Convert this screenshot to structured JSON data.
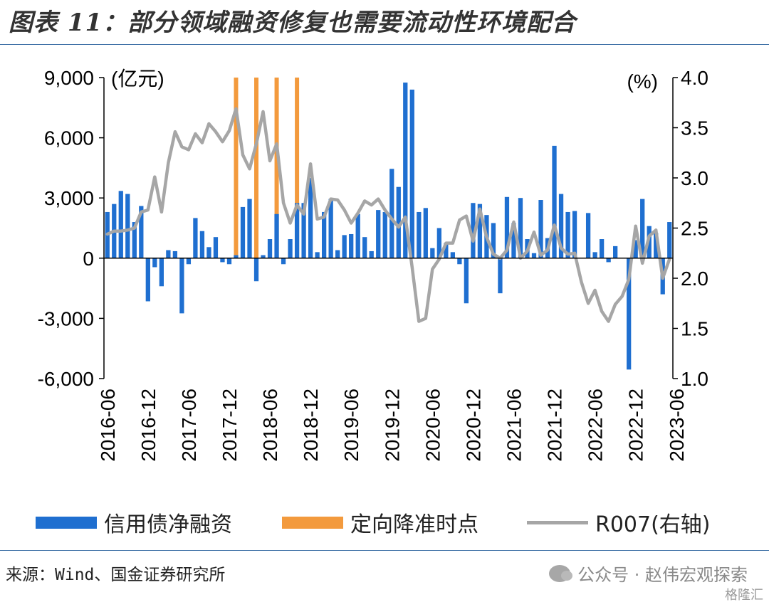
{
  "title": "图表 11：部分领域融资修复也需要流动性环境配合",
  "chart_data": {
    "type": "bar+line",
    "left_axis": {
      "unit_label": "(亿元)",
      "ticks": [
        9000,
        6000,
        3000,
        0,
        -3000,
        -6000
      ],
      "tick_labels": [
        "9,000",
        "6,000",
        "3,000",
        "0",
        "-3,000",
        "-6,000"
      ],
      "ylim": [
        -6000,
        9000
      ]
    },
    "right_axis": {
      "unit_label": "(%)",
      "ticks": [
        4.0,
        3.5,
        3.0,
        2.5,
        2.0,
        1.5,
        1.0
      ],
      "tick_labels": [
        "4.0",
        "3.5",
        "3.0",
        "2.5",
        "2.0",
        "1.5",
        "1.0"
      ],
      "ylim": [
        1.0,
        4.0
      ]
    },
    "x_tick_labels": [
      "2016-06",
      "2016-12",
      "2017-06",
      "2017-12",
      "2018-06",
      "2018-12",
      "2019-06",
      "2019-12",
      "2020-06",
      "2020-12",
      "2021-06",
      "2021-12",
      "2022-06",
      "2022-12",
      "2023-06"
    ],
    "x_start": "2016-06",
    "series": [
      {
        "name": "信用债净融资",
        "type": "bar",
        "axis": "left",
        "color": "#1f6fd0",
        "values": [
          2300,
          2700,
          3350,
          3200,
          1800,
          2600,
          -2150,
          -450,
          -1400,
          400,
          350,
          -2750,
          -300,
          2000,
          1350,
          550,
          1050,
          -200,
          -300,
          150,
          2550,
          2950,
          -1150,
          150,
          950,
          2200,
          -300,
          950,
          2750,
          2750,
          4000,
          300,
          2300,
          2950,
          400,
          1150,
          1200,
          2200,
          1050,
          350,
          2400,
          2300,
          4450,
          3550,
          8750,
          8400,
          2300,
          2500,
          500,
          1500,
          750,
          300,
          -300,
          -2250,
          2750,
          2700,
          2150,
          1750,
          -1750,
          3050,
          1750,
          3000,
          950,
          250,
          2900,
          1000,
          5600,
          3200,
          2300,
          2350,
          0,
          2250,
          300,
          950,
          -200,
          600,
          0,
          -5550,
          900,
          2950,
          1600,
          1250,
          -1800,
          1800
        ]
      },
      {
        "name": "定向降准时点",
        "type": "bar",
        "axis": "left",
        "color": "#f39a3d",
        "x": [
          "2018-01",
          "2018-04",
          "2018-07",
          "2018-10"
        ],
        "values": [
          9000,
          9000,
          9000,
          9000
        ]
      },
      {
        "name": "R007(右轴)",
        "type": "line",
        "axis": "right",
        "color": "#a6a6a6",
        "values": [
          2.44,
          2.47,
          2.47,
          2.48,
          2.5,
          2.66,
          2.68,
          3.01,
          2.66,
          3.15,
          3.46,
          3.31,
          3.28,
          3.44,
          3.35,
          3.54,
          3.46,
          3.36,
          3.47,
          3.69,
          3.23,
          3.09,
          3.34,
          3.66,
          3.17,
          3.34,
          2.75,
          2.55,
          2.73,
          2.64,
          3.14,
          2.59,
          2.61,
          2.79,
          2.78,
          2.68,
          2.55,
          2.65,
          2.77,
          2.73,
          2.79,
          2.68,
          2.59,
          2.51,
          2.61,
          2.11,
          1.57,
          1.6,
          2.09,
          2.19,
          2.35,
          2.35,
          2.58,
          2.62,
          2.37,
          2.69,
          2.41,
          2.24,
          2.2,
          2.28,
          2.56,
          2.2,
          2.27,
          2.46,
          2.23,
          2.28,
          2.53,
          2.3,
          2.24,
          2.25,
          1.96,
          1.75,
          1.88,
          1.67,
          1.57,
          1.74,
          1.82,
          1.99,
          2.52,
          2.15,
          2.42,
          2.48,
          2.0,
          2.19
        ]
      }
    ],
    "legend": [
      "信用债净融资",
      "定向降准时点",
      "R007(右轴)"
    ],
    "legend_position": "bottom",
    "grid": false
  },
  "footer": {
    "source": "来源：Wind、国金证券研究所",
    "watermark": "公众号 · 赵伟宏观探索",
    "brand": "格隆汇"
  }
}
